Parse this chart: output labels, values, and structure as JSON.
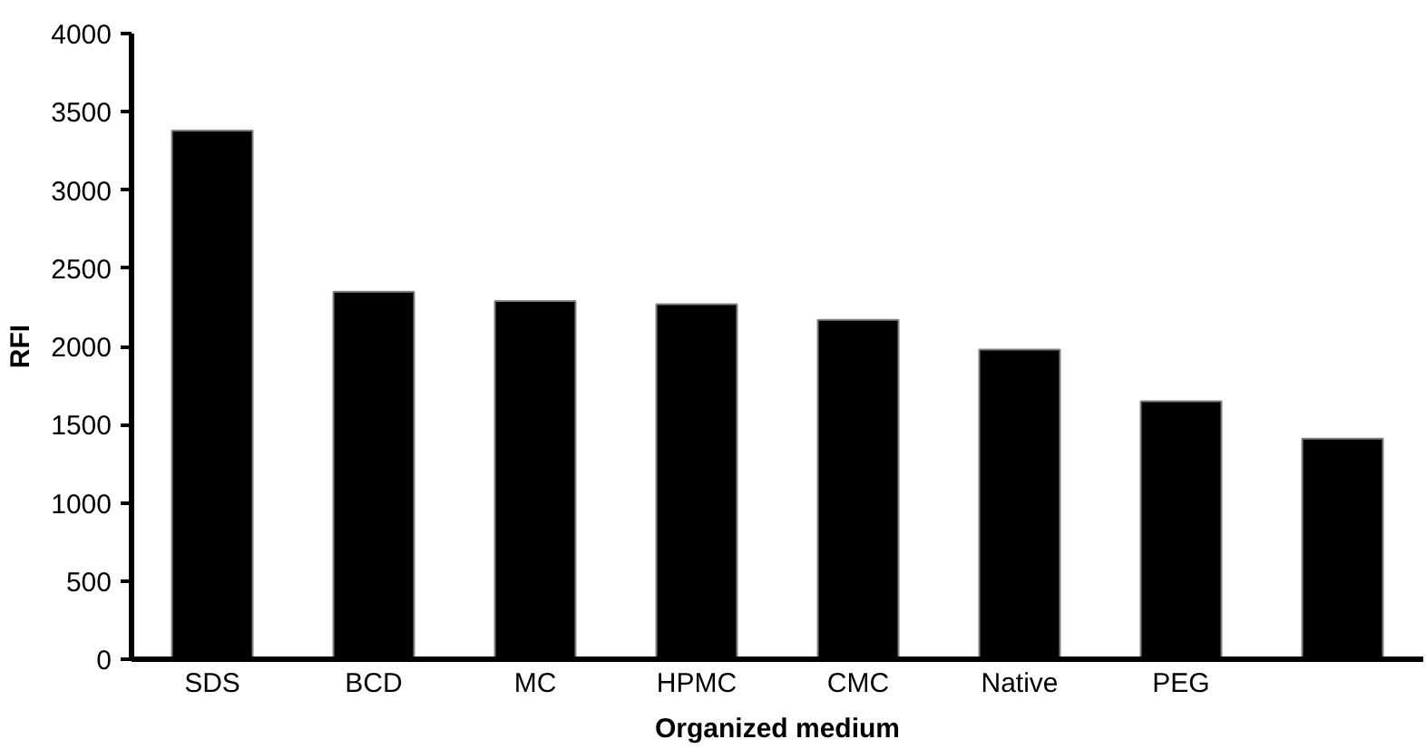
{
  "chart_data": {
    "type": "bar",
    "xlabel": "Organized medium",
    "ylabel": "RFI",
    "categories": [
      "SDS",
      "BCD",
      "MC",
      "HPMC",
      "CMC",
      "Native",
      "PEG",
      null
    ],
    "values": [
      3380,
      2350,
      2290,
      2270,
      2170,
      1980,
      1650,
      1410
    ],
    "color": "#000000",
    "ylim": [
      0,
      4000
    ],
    "yticks": [
      0,
      500,
      1000,
      1500,
      2000,
      2500,
      3000,
      3500,
      4000
    ]
  }
}
